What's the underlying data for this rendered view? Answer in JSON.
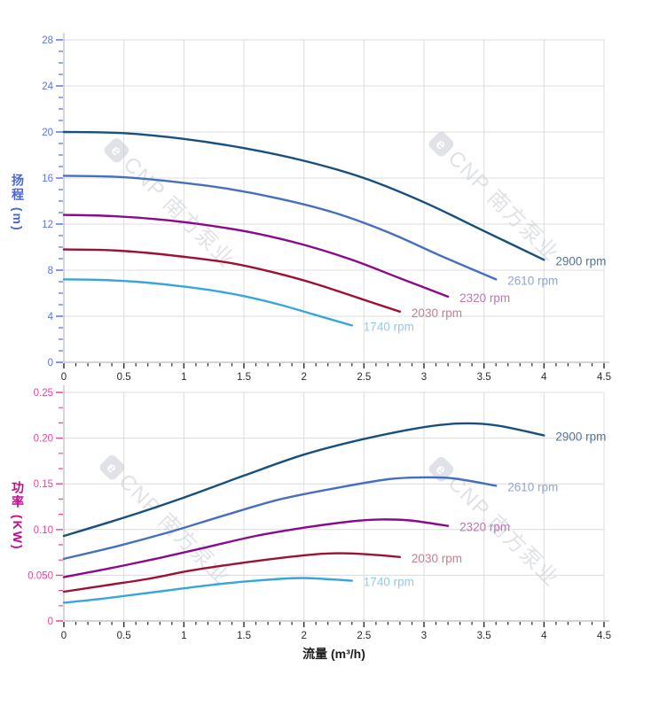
{
  "watermark": {
    "text": "CNP 南方泵业",
    "logo_letter": "e",
    "color": "#c2c7d2"
  },
  "chart_data": [
    {
      "type": "line",
      "title": "",
      "xlabel": "",
      "ylabel": "扬程 (m)",
      "xlim": [
        0,
        4.5
      ],
      "ylim": [
        0,
        28
      ],
      "grid": true,
      "legend_position": "right-of-curve-ends",
      "x_tick_labels": [
        "0",
        "0.5",
        "1",
        "1.5",
        "2",
        "2.5",
        "3",
        "3.5",
        "4",
        "4.5"
      ],
      "y_tick_labels": [
        "0",
        "4",
        "8",
        "12",
        "16",
        "20",
        "24",
        "28"
      ],
      "x_minor_per_major": 4,
      "y_minor_per_major": 3,
      "y_tick_color": "#5b74dc",
      "x_tick_color": "#2b2b2b",
      "series": [
        {
          "name": "2900 rpm",
          "color": "#174f7f",
          "label_color": "#577394",
          "x": [
            0,
            0.5,
            1.0,
            1.5,
            2.0,
            2.5,
            3.0,
            3.5,
            4.0
          ],
          "y": [
            20.0,
            19.9,
            19.4,
            18.6,
            17.5,
            16.0,
            13.9,
            11.4,
            8.9
          ]
        },
        {
          "name": "2610 rpm",
          "color": "#4670be",
          "label_color": "#8fa5d2",
          "x": [
            0,
            0.45,
            0.9,
            1.35,
            1.8,
            2.25,
            2.7,
            3.15,
            3.6
          ],
          "y": [
            16.2,
            16.1,
            15.7,
            15.1,
            14.2,
            13.0,
            11.3,
            9.2,
            7.2
          ]
        },
        {
          "name": "2320 rpm",
          "color": "#8b0a8b",
          "label_color": "#ba77b4",
          "x": [
            0,
            0.4,
            0.8,
            1.2,
            1.6,
            2.0,
            2.4,
            2.8,
            3.2
          ],
          "y": [
            12.8,
            12.7,
            12.4,
            11.9,
            11.2,
            10.2,
            8.9,
            7.3,
            5.7
          ]
        },
        {
          "name": "2030 rpm",
          "color": "#9e1132",
          "label_color": "#c47e8e",
          "x": [
            0,
            0.35,
            0.7,
            1.05,
            1.4,
            1.75,
            2.1,
            2.45,
            2.8
          ],
          "y": [
            9.8,
            9.75,
            9.5,
            9.1,
            8.6,
            7.8,
            6.8,
            5.6,
            4.4
          ]
        },
        {
          "name": "1740 rpm",
          "color": "#38a5db",
          "label_color": "#92cbe8",
          "x": [
            0,
            0.3,
            0.6,
            0.9,
            1.2,
            1.5,
            1.8,
            2.1,
            2.4
          ],
          "y": [
            7.2,
            7.15,
            7.0,
            6.7,
            6.3,
            5.75,
            5.0,
            4.1,
            3.2
          ]
        }
      ]
    },
    {
      "type": "line",
      "title": "",
      "xlabel": "流量 (m³/h)",
      "ylabel": "功率 (KW)",
      "xlim": [
        0,
        4.5
      ],
      "ylim": [
        0,
        0.25
      ],
      "grid": true,
      "legend_position": "right-of-curve-ends",
      "x_tick_labels": [
        "0",
        "0.5",
        "1",
        "1.5",
        "2",
        "2.5",
        "3",
        "3.5",
        "4",
        "4.5"
      ],
      "y_tick_labels": [
        "0",
        "0.050",
        "0.10",
        "0.15",
        "0.20",
        "0.25"
      ],
      "x_minor_per_major": 4,
      "y_minor_per_major": 2,
      "y_tick_color": "#e2489b",
      "x_tick_color": "#2b2b2b",
      "series": [
        {
          "name": "2900 rpm",
          "color": "#174f7f",
          "label_color": "#577394",
          "x": [
            0,
            0.5,
            1.0,
            1.5,
            2.0,
            2.5,
            3.0,
            3.3,
            3.6,
            4.0
          ],
          "y": [
            0.093,
            0.113,
            0.135,
            0.159,
            0.182,
            0.199,
            0.212,
            0.216,
            0.214,
            0.203
          ]
        },
        {
          "name": "2610 rpm",
          "color": "#4670be",
          "label_color": "#8fa5d2",
          "x": [
            0,
            0.45,
            0.9,
            1.35,
            1.8,
            2.25,
            2.7,
            2.97,
            3.24,
            3.6
          ],
          "y": [
            0.068,
            0.082,
            0.098,
            0.116,
            0.133,
            0.145,
            0.155,
            0.157,
            0.156,
            0.148
          ]
        },
        {
          "name": "2320 rpm",
          "color": "#8b0a8b",
          "label_color": "#ba77b4",
          "x": [
            0,
            0.4,
            0.8,
            1.2,
            1.6,
            2.0,
            2.4,
            2.64,
            2.88,
            3.2
          ],
          "y": [
            0.048,
            0.058,
            0.069,
            0.081,
            0.093,
            0.102,
            0.109,
            0.111,
            0.11,
            0.104
          ]
        },
        {
          "name": "2030 rpm",
          "color": "#9e1132",
          "label_color": "#c47e8e",
          "x": [
            0,
            0.35,
            0.7,
            1.05,
            1.4,
            1.75,
            2.1,
            2.31,
            2.52,
            2.8
          ],
          "y": [
            0.032,
            0.039,
            0.046,
            0.055,
            0.062,
            0.068,
            0.073,
            0.074,
            0.073,
            0.07
          ]
        },
        {
          "name": "1740 rpm",
          "color": "#38a5db",
          "label_color": "#92cbe8",
          "x": [
            0,
            0.3,
            0.6,
            0.9,
            1.2,
            1.5,
            1.8,
            1.98,
            2.16,
            2.4
          ],
          "y": [
            0.02,
            0.024,
            0.029,
            0.034,
            0.039,
            0.043,
            0.046,
            0.047,
            0.046,
            0.044
          ]
        }
      ]
    }
  ]
}
